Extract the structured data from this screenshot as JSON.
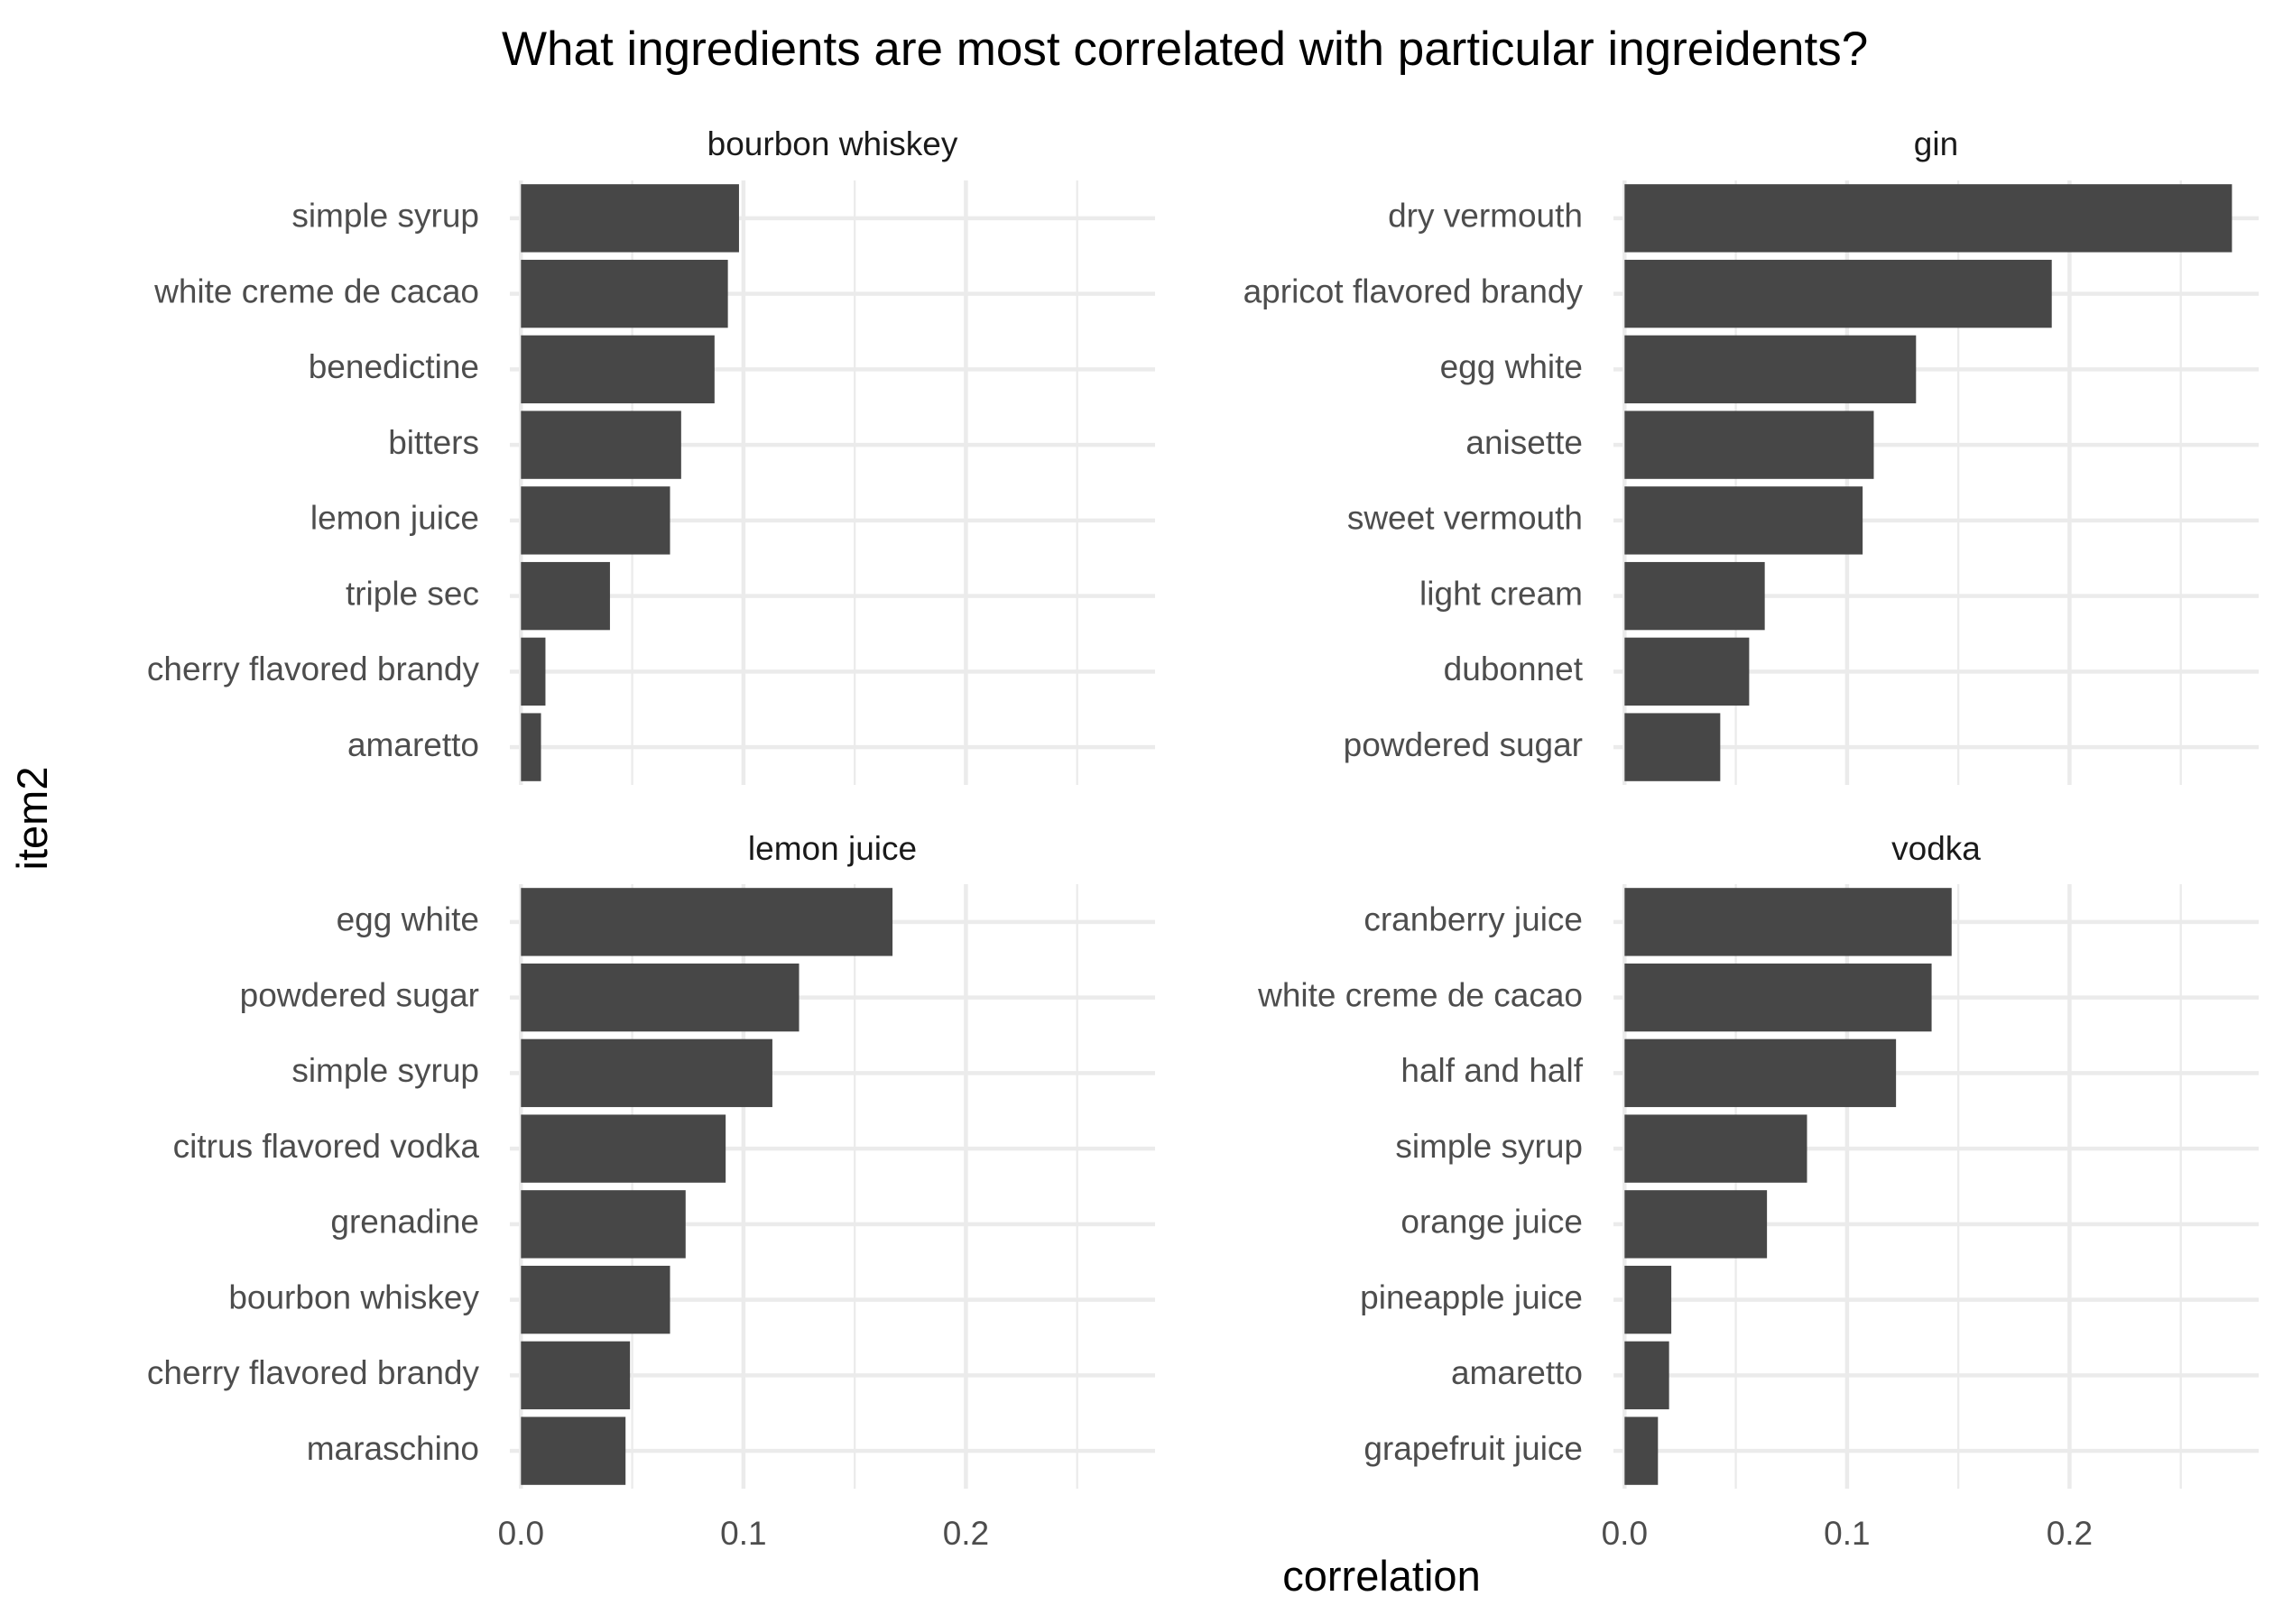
{
  "chart_data": {
    "type": "bar",
    "orientation": "horizontal",
    "title": "What ingredients are most correlated with particular ingreidents?",
    "xlabel": "correlation",
    "ylabel": "item2",
    "xlim": [
      -0.005,
      0.285
    ],
    "xticks": [
      0.0,
      0.1,
      0.2
    ],
    "xtick_labels": [
      "0.0",
      "0.1",
      "0.2"
    ],
    "grid": true,
    "bar_color": "#474747",
    "panels": [
      {
        "facet": "bourbon whiskey",
        "categories": [
          "simple syrup",
          "white creme de cacao",
          "benedictine",
          "bitters",
          "lemon juice",
          "triple sec",
          "cherry flavored brandy",
          "amaretto"
        ],
        "values": [
          0.098,
          0.093,
          0.087,
          0.072,
          0.067,
          0.04,
          0.011,
          0.009
        ]
      },
      {
        "facet": "gin",
        "categories": [
          "dry vermouth",
          "apricot flavored brandy",
          "egg white",
          "anisette",
          "sweet vermouth",
          "light cream",
          "dubonnet",
          "powdered sugar"
        ],
        "values": [
          0.273,
          0.192,
          0.131,
          0.112,
          0.107,
          0.063,
          0.056,
          0.043
        ]
      },
      {
        "facet": "lemon juice",
        "categories": [
          "egg white",
          "powdered sugar",
          "simple syrup",
          "citrus flavored vodka",
          "grenadine",
          "bourbon whiskey",
          "cherry flavored brandy",
          "maraschino"
        ],
        "values": [
          0.167,
          0.125,
          0.113,
          0.092,
          0.074,
          0.067,
          0.049,
          0.047
        ]
      },
      {
        "facet": "vodka",
        "categories": [
          "cranberry juice",
          "white creme de cacao",
          "half and half",
          "simple syrup",
          "orange juice",
          "pineapple juice",
          "amaretto",
          "grapefruit juice"
        ],
        "values": [
          0.147,
          0.138,
          0.122,
          0.082,
          0.064,
          0.021,
          0.02,
          0.015
        ]
      }
    ]
  }
}
